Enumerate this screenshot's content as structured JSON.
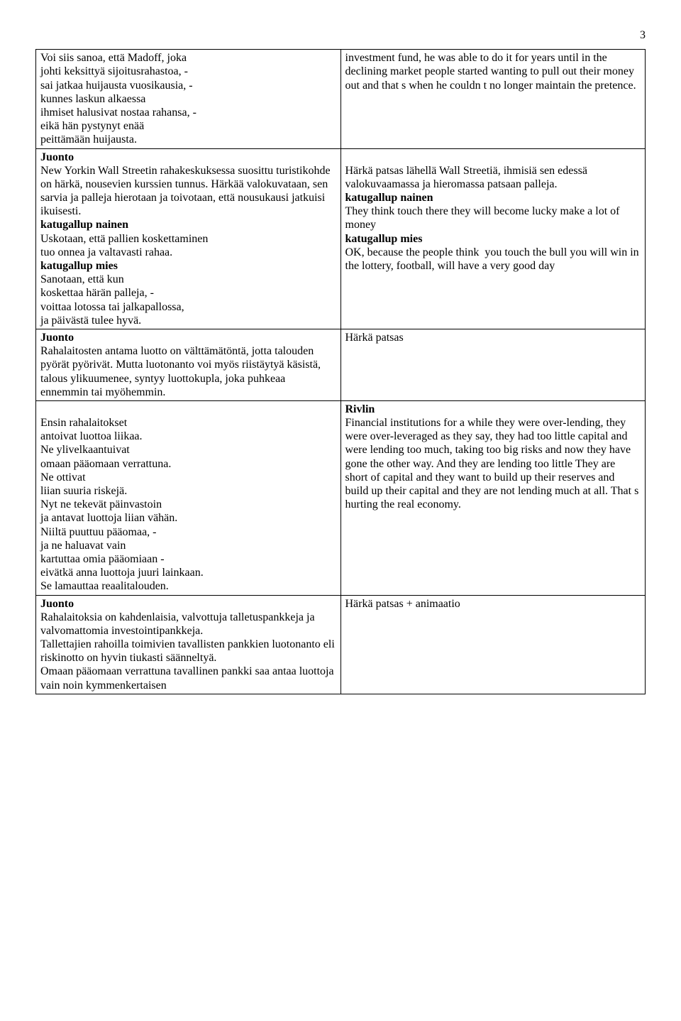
{
  "page_number": "3",
  "rows": [
    {
      "left": [
        {
          "t": "Voi siis sanoa, että Madoff, joka"
        },
        {
          "t": "johti keksittyä sijoitusrahastoa, -"
        },
        {
          "t": "sai jatkaa huijausta vuosikausia, -"
        },
        {
          "t": "kunnes laskun alkaessa"
        },
        {
          "t": "ihmiset halusivat nostaa rahansa, -"
        },
        {
          "t": "eikä hän pystynyt enää"
        },
        {
          "t": "peittämään huijausta."
        }
      ],
      "right": [
        {
          "t": "investment fund, he was able to do it for years until in the declining market people started wanting to pull out their money out and that s when he couldn t no longer maintain the pretence."
        }
      ]
    },
    {
      "left": [
        {
          "t": "Juonto",
          "b": true
        },
        {
          "t": "New Yorkin Wall Streetin rahakeskuksessa suosittu turistikohde on härkä, nousevien kurssien tunnus. Härkää valokuvataan, sen sarvia ja palleja hierotaan ja toivotaan, että nousukausi jatkuisi ikuisesti."
        },
        {
          "t": "katugallup nainen",
          "b": true
        },
        {
          "t": "Uskotaan, että pallien koskettaminen"
        },
        {
          "t": "tuo onnea ja valtavasti rahaa."
        },
        {
          "t": "katugallup mies",
          "b": true
        },
        {
          "t": "Sanotaan, että kun"
        },
        {
          "t": "koskettaa härän palleja, -"
        },
        {
          "t": "voittaa lotossa tai jalkapallossa,"
        },
        {
          "t": "ja päivästä tulee hyvä."
        }
      ],
      "right": [
        {
          "t": " "
        },
        {
          "t": "Härkä patsas lähellä Wall Streetiä, ihmisiä sen edessä valokuvaamassa ja hieromassa patsaan palleja."
        },
        {
          "t": "katugallup nainen",
          "b": true
        },
        {
          "t": "They think touch there they will become lucky make a lot of money"
        },
        {
          "t": "katugallup mies",
          "b": true
        },
        {
          "t": "OK, because the people think  you touch the bull you will win in the lottery, football, will have a very good day"
        }
      ]
    },
    {
      "left": [
        {
          "t": "Juonto",
          "b": true
        },
        {
          "t": "Rahalaitosten antama luotto on välttämätöntä, jotta talouden pyörät pyörivät. Mutta luotonanto voi myös riistäytyä käsistä, talous ylikuumenee, syntyy luottokupla, joka puhkeaa ennemmin tai myöhemmin."
        }
      ],
      "right": [
        {
          "t": "Härkä patsas"
        }
      ]
    },
    {
      "left": [
        {
          "t": " "
        },
        {
          "t": "Ensin rahalaitokset"
        },
        {
          "t": "antoivat luottoa liikaa."
        },
        {
          "t": "Ne ylivelkaantuivat"
        },
        {
          "t": "omaan pääomaan verrattuna."
        },
        {
          "t": "Ne ottivat"
        },
        {
          "t": "liian suuria riskejä."
        },
        {
          "t": "Nyt ne tekevät päinvastoin"
        },
        {
          "t": "ja antavat luottoja liian vähän."
        },
        {
          "t": "Niiltä puuttuu pääomaa, -"
        },
        {
          "t": "ja ne haluavat vain"
        },
        {
          "t": "kartuttaa omia pääomiaan -"
        },
        {
          "t": "eivätkä anna luottoja juuri lainkaan."
        },
        {
          "t": "Se lamauttaa reaalitalouden."
        }
      ],
      "right": [
        {
          "t": "Rivlin",
          "b": true
        },
        {
          "t": "Financial institutions for a while they were over-lending, they were over-leveraged as they say, they had too little capital and were lending too much, taking too big risks and now they have gone the other way. And they are lending too little They are short of capital and they want to build up their reserves and build up their capital and they are not lending much at all. That s hurting the real economy."
        }
      ]
    },
    {
      "left": [
        {
          "t": "Juonto",
          "b": true
        },
        {
          "t": "Rahalaitoksia on kahdenlaisia, valvottuja talletuspankkeja ja valvomattomia investointipankkeja."
        },
        {
          "t": "Tallettajien rahoilla toimivien tavallisten pankkien luotonanto eli riskinotto on hyvin tiukasti säänneltyä."
        },
        {
          "t": "Omaan pääomaan verrattuna tavallinen pankki saa antaa luottoja vain noin kymmenkertaisen"
        }
      ],
      "right": [
        {
          "t": "Härkä patsas + animaatio"
        }
      ]
    }
  ]
}
